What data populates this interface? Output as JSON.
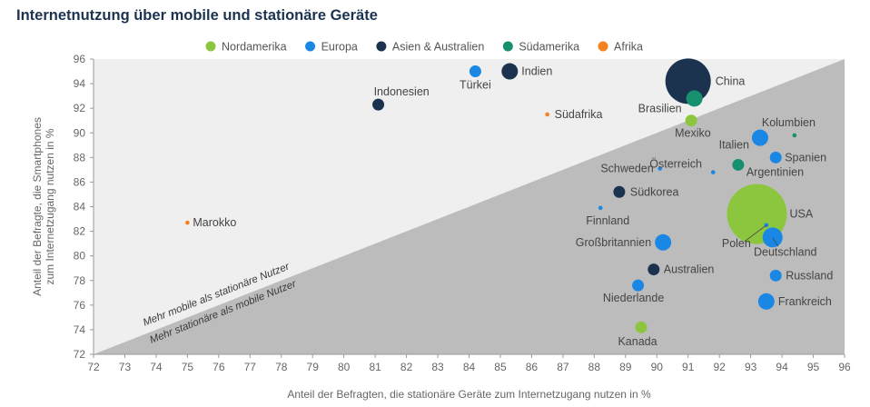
{
  "page_title": "Internetnutzung über mobile und stationäre Geräte",
  "chart_data": {
    "type": "scatter",
    "title": "Internetnutzung über mobile und stationäre Geräte",
    "xlabel": "Anteil der Befragten, die stationäre Geräte zum Internetzugang nutzen in %",
    "ylabel_line1": "Anteil der Befragte, die Smartphones",
    "ylabel_line2": "zum Internetzugang nutzen in %",
    "xlim": [
      72,
      96
    ],
    "ylim": [
      72,
      96
    ],
    "x_ticks": [
      "72",
      "73",
      "74",
      "75",
      "76",
      "77",
      "78",
      "79",
      "80",
      "81",
      "82",
      "83",
      "84",
      "85",
      "86",
      "87",
      "88",
      "89",
      "90",
      "91",
      "92",
      "93",
      "94",
      "95",
      "96"
    ],
    "y_ticks": [
      "72",
      "74",
      "76",
      "78",
      "80",
      "82",
      "84",
      "86",
      "88",
      "90",
      "92",
      "94",
      "96"
    ],
    "grid": false,
    "legend_position": "top",
    "legend": [
      {
        "name": "Nordamerika",
        "color": "#8cc63f"
      },
      {
        "name": "Europa",
        "color": "#1a87e4"
      },
      {
        "name": "Asien & Australien",
        "color": "#1c3350"
      },
      {
        "name": "Südamerika",
        "color": "#16906e"
      },
      {
        "name": "Afrika",
        "color": "#f58220"
      }
    ],
    "region_labels": {
      "upper": "Mehr mobile als stationäre Nutzer",
      "lower": "Mehr stationäre als mobile Nutzer"
    },
    "points": [
      {
        "label": "China",
        "region": "Asien & Australien",
        "x": 91.0,
        "y": 94.2,
        "size": 5
      },
      {
        "label": "Indien",
        "region": "Asien & Australien",
        "x": 85.3,
        "y": 95.0,
        "size": 3
      },
      {
        "label": "Türkei",
        "region": "Europa",
        "x": 84.2,
        "y": 95.0,
        "size": 2
      },
      {
        "label": "Indonesien",
        "region": "Asien & Australien",
        "x": 81.1,
        "y": 92.3,
        "size": 2
      },
      {
        "label": "Brasilien",
        "region": "Südamerika",
        "x": 91.2,
        "y": 92.8,
        "size": 3
      },
      {
        "label": "Südafrika",
        "region": "Afrika",
        "x": 86.5,
        "y": 91.5,
        "size": 1
      },
      {
        "label": "Mexiko",
        "region": "Nordamerika",
        "x": 91.1,
        "y": 91.0,
        "size": 2
      },
      {
        "label": "Kolumbien",
        "region": "Südamerika",
        "x": 94.4,
        "y": 89.8,
        "size": 1
      },
      {
        "label": "Italien",
        "region": "Europa",
        "x": 93.3,
        "y": 89.6,
        "size": 3
      },
      {
        "label": "Spanien",
        "region": "Europa",
        "x": 93.8,
        "y": 88.0,
        "size": 2
      },
      {
        "label": "Argentinien",
        "region": "Südamerika",
        "x": 92.6,
        "y": 87.4,
        "size": 2
      },
      {
        "label": "Österreich",
        "region": "Europa",
        "x": 91.8,
        "y": 86.8,
        "size": 1
      },
      {
        "label": "Schweden",
        "region": "Europa",
        "x": 90.1,
        "y": 87.1,
        "size": 1
      },
      {
        "label": "Südkorea",
        "region": "Asien & Australien",
        "x": 88.8,
        "y": 85.2,
        "size": 2
      },
      {
        "label": "Finnland",
        "region": "Europa",
        "x": 88.2,
        "y": 83.9,
        "size": 1
      },
      {
        "label": "USA",
        "region": "Nordamerika",
        "x": 93.2,
        "y": 83.4,
        "size": 7
      },
      {
        "label": "Polen",
        "region": "Europa",
        "x": 93.5,
        "y": 82.5,
        "size": 1
      },
      {
        "label": "Großbritannien",
        "region": "Europa",
        "x": 90.2,
        "y": 81.1,
        "size": 3
      },
      {
        "label": "Deutschland",
        "region": "Europa",
        "x": 93.7,
        "y": 81.5,
        "size": 4
      },
      {
        "label": "Marokko",
        "region": "Afrika",
        "x": 75.0,
        "y": 82.7,
        "size": 1
      },
      {
        "label": "Australien",
        "region": "Asien & Australien",
        "x": 89.9,
        "y": 78.9,
        "size": 2
      },
      {
        "label": "Russland",
        "region": "Europa",
        "x": 93.8,
        "y": 78.4,
        "size": 2
      },
      {
        "label": "Niederlande",
        "region": "Europa",
        "x": 89.4,
        "y": 77.6,
        "size": 2
      },
      {
        "label": "Frankreich",
        "region": "Europa",
        "x": 93.5,
        "y": 76.3,
        "size": 3
      },
      {
        "label": "Kanada",
        "region": "Nordamerika",
        "x": 89.5,
        "y": 74.2,
        "size": 2
      }
    ]
  }
}
